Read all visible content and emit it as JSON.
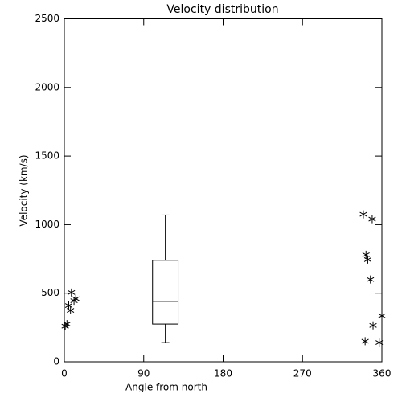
{
  "chart_data": {
    "type": "scatter",
    "title": "Velocity distribution",
    "x_label": "Angle from north",
    "y_label": "Velocity (km/s)",
    "x": [
      1,
      3,
      5,
      7,
      8,
      11,
      13,
      339,
      349,
      342,
      344,
      347,
      341,
      350,
      357,
      360
    ],
    "y": [
      260,
      275,
      410,
      375,
      505,
      445,
      460,
      1075,
      1040,
      780,
      745,
      600,
      150,
      265,
      140,
      335
    ],
    "box": {
      "x": [
        100,
        129
      ],
      "min": 140,
      "q1": 275,
      "median": 440,
      "q3": 740,
      "max": 1070
    },
    "color": "#000000",
    "xlim": [
      0,
      360
    ],
    "xticks": [
      0,
      90,
      180,
      270,
      360
    ],
    "ylim": [
      0,
      2500
    ],
    "yticks": [
      0,
      500,
      1000,
      1500,
      2000,
      2500
    ]
  }
}
